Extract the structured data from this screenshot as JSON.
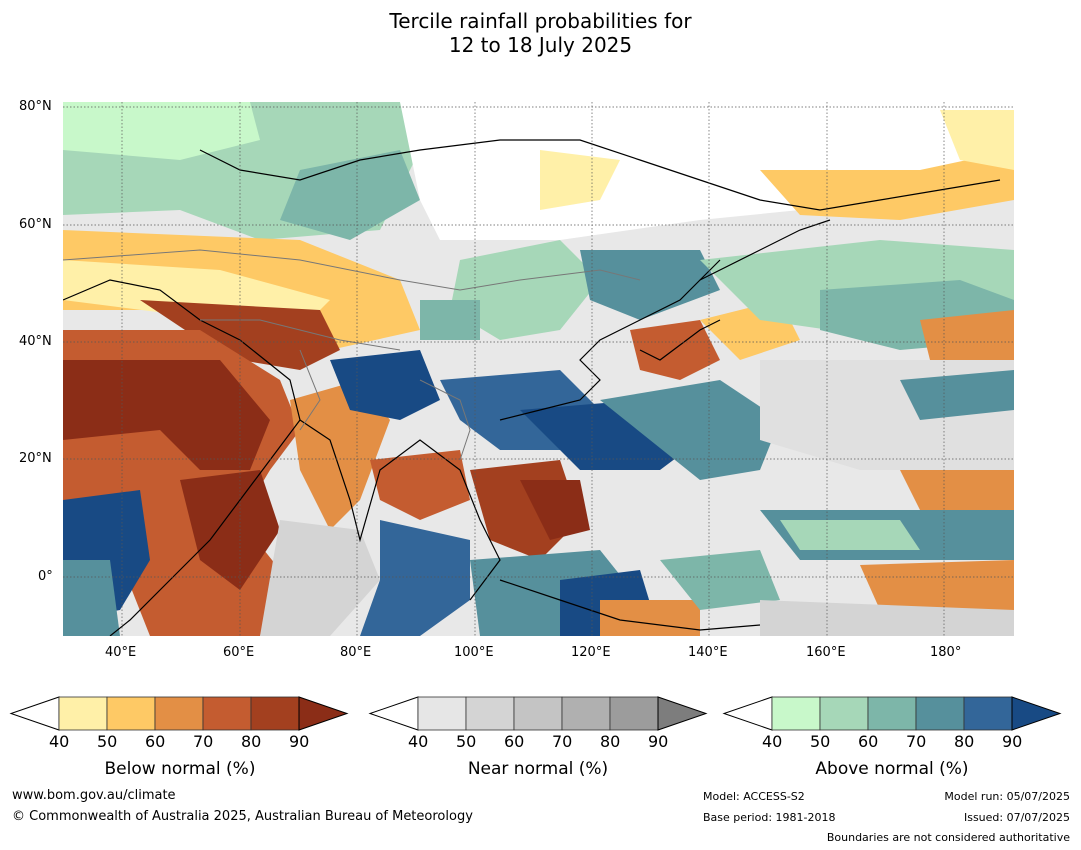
{
  "title": {
    "line1": "Tercile rainfall probabilities for",
    "line2": "12 to 18 July 2025"
  },
  "map": {
    "lat_labels": [
      "80°N",
      "60°N",
      "40°N",
      "20°N",
      "0°"
    ],
    "lon_labels": [
      "40°E",
      "60°E",
      "80°E",
      "100°E",
      "120°E",
      "140°E",
      "160°E",
      "180°"
    ],
    "extent": {
      "lon": [
        30,
        192
      ],
      "lat": [
        -10,
        81
      ]
    },
    "gridlines": true
  },
  "colorbars": [
    {
      "title": "Below normal (%)",
      "ticks": [
        "40",
        "50",
        "60",
        "70",
        "80",
        "90"
      ],
      "colors": [
        "#fff0a8",
        "#fec965",
        "#e38f45",
        "#c45c30",
        "#a3401f",
        "#8b2d17"
      ]
    },
    {
      "title": "Near normal (%)",
      "ticks": [
        "40",
        "50",
        "60",
        "70",
        "80",
        "90"
      ],
      "colors": [
        "#e6e6e6",
        "#d4d4d4",
        "#c4c4c4",
        "#b0b0b0",
        "#9c9c9c",
        "#7d7d7d"
      ]
    },
    {
      "title": "Above normal (%)",
      "ticks": [
        "40",
        "50",
        "60",
        "70",
        "80",
        "90"
      ],
      "colors": [
        "#c8f8ca",
        "#a6d7b8",
        "#7db6a9",
        "#56909c",
        "#336699",
        "#184a84"
      ]
    }
  ],
  "footer": {
    "url": "www.bom.gov.au/climate",
    "copyright": "© Commonwealth of Australia 2025, Australian Bureau of Meteorology",
    "model": "Model: ACCESS-S2",
    "base_period": "Base period: 1981-2018",
    "model_run": "Model run: 05/07/2025",
    "issued": "Issued: 07/07/2025",
    "disclaimer": "Boundaries are not considered authoritative"
  }
}
